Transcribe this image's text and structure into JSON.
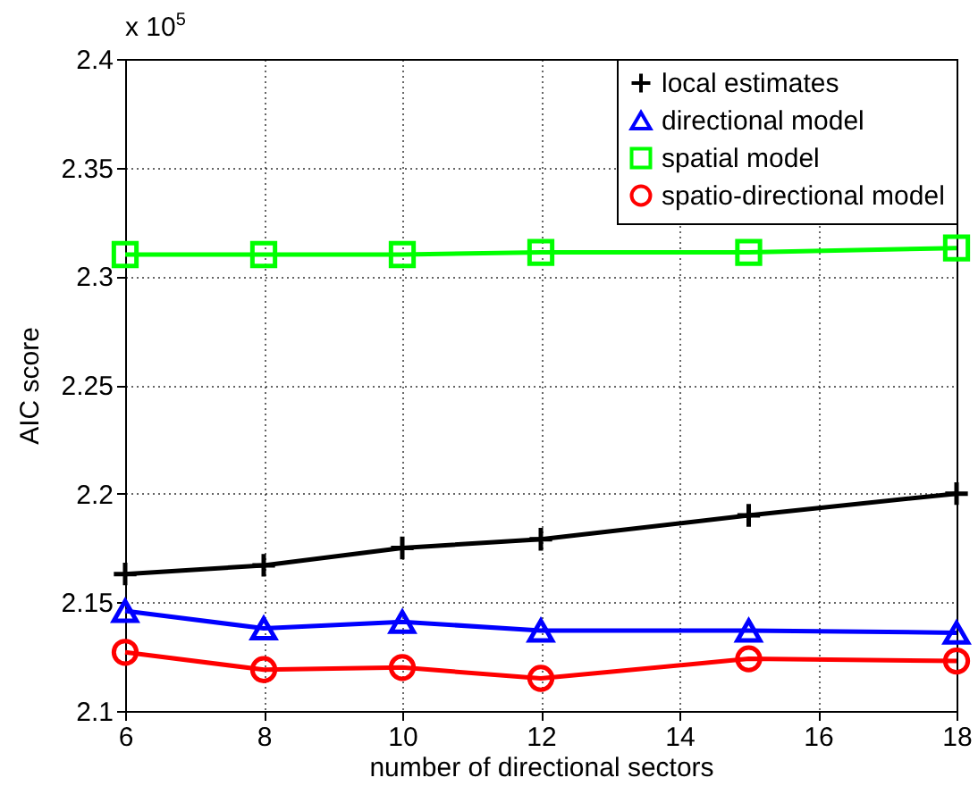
{
  "chart_data": {
    "type": "line",
    "xlabel": "number of directional sectors",
    "ylabel": "AIC score",
    "annotations": [
      "x 10$^{5}$"
    ],
    "x": [
      6,
      8,
      10,
      12,
      15,
      18
    ],
    "series": [
      {
        "name": "local estimates",
        "color": "#000000",
        "marker": "cross",
        "values": [
          2.163,
          2.167,
          2.175,
          2.179,
          2.19,
          2.2
        ]
      },
      {
        "name": "directional model",
        "color": "#0000ff",
        "marker": "triangle",
        "values": [
          2.146,
          2.138,
          2.141,
          2.137,
          2.137,
          2.136
        ]
      },
      {
        "name": "spatial model",
        "color": "#00ff00",
        "marker": "square",
        "values": [
          2.31,
          2.31,
          2.31,
          2.311,
          2.311,
          2.313
        ]
      },
      {
        "name": "spatio-directional model",
        "color": "#ff0000",
        "marker": "circle",
        "values": [
          2.127,
          2.119,
          2.12,
          2.115,
          2.124,
          2.123
        ]
      }
    ],
    "xlim": [
      6,
      18
    ],
    "xticks": [
      6,
      8,
      10,
      12,
      14,
      16,
      18
    ],
    "ylim": [
      2.1,
      2.4
    ],
    "yticks": [
      2.1,
      2.15,
      2.2,
      2.25,
      2.3,
      2.35,
      2.4
    ],
    "grid": true,
    "legend": "top right",
    "line_style": "solid"
  }
}
